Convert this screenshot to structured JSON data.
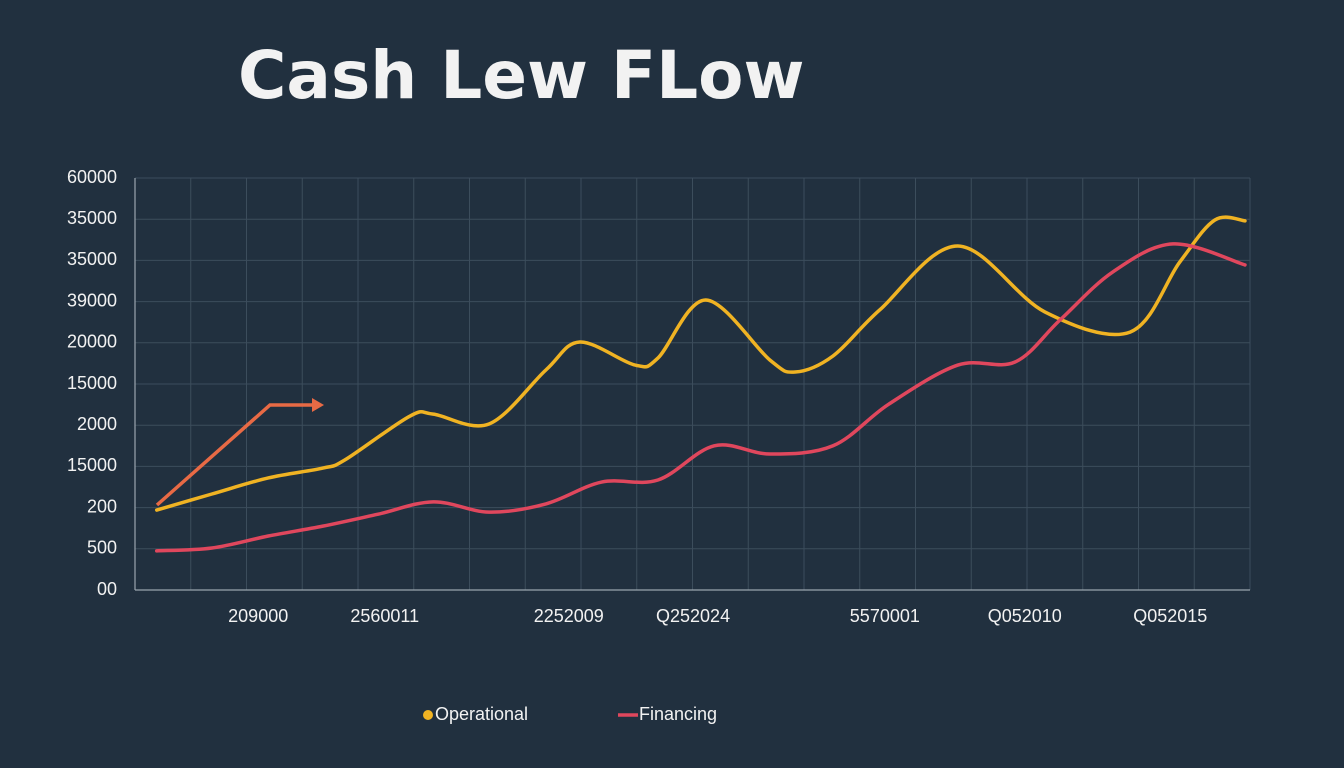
{
  "chart_data": {
    "type": "line",
    "title": "Cash  Lew FLow",
    "xlim": [
      0,
      20
    ],
    "xticks": [
      {
        "value": 2.21,
        "label": "209000"
      },
      {
        "value": 4.48,
        "label": "2560011"
      },
      {
        "value": 7.78,
        "label": "2252009"
      },
      {
        "value": 10.01,
        "label": "Q252024"
      },
      {
        "value": 13.45,
        "label": "5570001"
      },
      {
        "value": 15.96,
        "label": "Q052010"
      },
      {
        "value": 18.57,
        "label": "Q052015"
      }
    ],
    "ylim": [
      0,
      10
    ],
    "yticks": [
      {
        "value": 0,
        "label": "00"
      },
      {
        "value": 1,
        "label": "500"
      },
      {
        "value": 2,
        "label": "200"
      },
      {
        "value": 3,
        "label": "15000"
      },
      {
        "value": 4,
        "label": "2000"
      },
      {
        "value": 5,
        "label": "15000"
      },
      {
        "value": 6,
        "label": "20000"
      },
      {
        "value": 7,
        "label": "39000"
      },
      {
        "value": 8,
        "label": "35000"
      },
      {
        "value": 9,
        "label": "35000"
      },
      {
        "value": 10,
        "label": "60000"
      }
    ],
    "grid": true,
    "legend": "bottom",
    "series": [
      {
        "name": "Operational",
        "color": "#f0b323",
        "x": [
          0.39,
          1.38,
          2.39,
          3.37,
          3.77,
          4.93,
          5.35,
          6.35,
          7.37,
          7.98,
          8.97,
          9.38,
          10.24,
          11.39,
          11.84,
          12.52,
          13.36,
          14.76,
          16.32,
          17.85,
          18.74,
          19.37,
          19.91
        ],
        "values": [
          1.94,
          2.33,
          2.72,
          2.96,
          3.16,
          4.22,
          4.27,
          4.03,
          5.34,
          6.02,
          5.46,
          5.63,
          7.04,
          5.58,
          5.29,
          5.68,
          6.8,
          8.35,
          6.75,
          6.26,
          7.96,
          8.98,
          8.96
        ]
      },
      {
        "name": "Financing",
        "color": "#e0475d",
        "x": [
          0.39,
          1.38,
          2.39,
          3.37,
          4.36,
          5.35,
          6.35,
          7.37,
          8.37,
          9.38,
          10.39,
          11.39,
          12.52,
          13.52,
          14.76,
          15.78,
          16.59,
          17.54,
          18.62,
          19.91
        ],
        "values": [
          0.95,
          1.02,
          1.31,
          1.55,
          1.84,
          2.14,
          1.89,
          2.09,
          2.62,
          2.67,
          3.5,
          3.3,
          3.5,
          4.51,
          5.46,
          5.53,
          6.55,
          7.72,
          8.4,
          7.89
        ]
      }
    ]
  }
}
